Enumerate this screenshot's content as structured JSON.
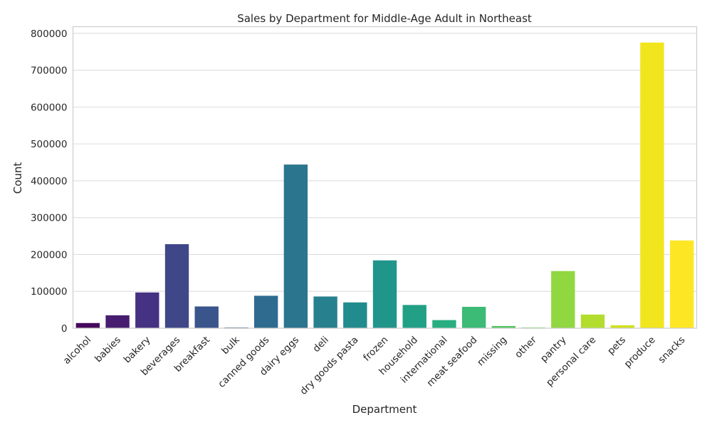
{
  "chart_data": {
    "type": "bar",
    "title": "Sales by Department for Middle-Age Adult in Northeast",
    "xlabel": "Department",
    "ylabel": "Count",
    "ylim": [
      0,
      818000
    ],
    "yticks": [
      0,
      100000,
      200000,
      300000,
      400000,
      500000,
      600000,
      700000,
      800000
    ],
    "grid": true,
    "categories": [
      "alcohol",
      "babies",
      "bakery",
      "beverages",
      "breakfast",
      "bulk",
      "canned goods",
      "dairy eggs",
      "deli",
      "dry goods pasta",
      "frozen",
      "household",
      "international",
      "meat seafood",
      "missing",
      "other",
      "pantry",
      "personal care",
      "pets",
      "produce",
      "snacks"
    ],
    "values": [
      14000,
      35000,
      97000,
      228000,
      59000,
      2000,
      88000,
      444000,
      86000,
      70000,
      184000,
      63000,
      22000,
      58000,
      6000,
      2000,
      155000,
      37000,
      8000,
      775000,
      238000
    ],
    "colors": [
      "#46085c",
      "#471e6f",
      "#453282",
      "#3f4788",
      "#3a548c",
      "#345f8d",
      "#2f6b8e",
      "#2b758e",
      "#27808e",
      "#228b8d",
      "#20958a",
      "#21a085",
      "#28ae80",
      "#3bbb75",
      "#57c665",
      "#72cf56",
      "#91d742",
      "#b2dd2d",
      "#d1e11c",
      "#f1e51d",
      "#fde725"
    ]
  }
}
